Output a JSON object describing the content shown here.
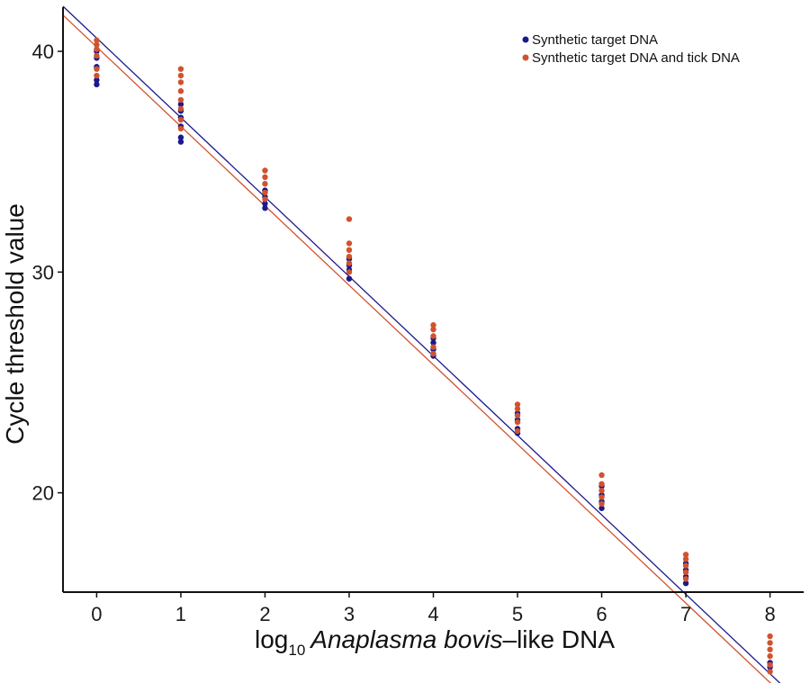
{
  "chart_data": {
    "type": "scatter",
    "xlabel_prefix": "log",
    "xlabel_subscript": "10",
    "xlabel_italic": "Anaplasma bovis",
    "xlabel_suffix": "–like DNA",
    "ylabel": "Cycle threshold value",
    "xlim": [
      -0.4,
      8.4
    ],
    "ylim": [
      15.5,
      42
    ],
    "x_ticks": [
      "0",
      "1",
      "2",
      "3",
      "4",
      "5",
      "6",
      "7",
      "8"
    ],
    "y_ticks": [
      "20",
      "30",
      "40"
    ],
    "legend_position": "top-right",
    "grid": false,
    "series": [
      {
        "name": "Synthetic target DNA",
        "color": "#1a1a8c",
        "regression": {
          "slope": -3.6,
          "intercept": 40.6
        },
        "points": [
          {
            "x": 0,
            "y": 38.5
          },
          {
            "x": 0,
            "y": 38.7
          },
          {
            "x": 0,
            "y": 39.3
          },
          {
            "x": 0,
            "y": 39.7
          },
          {
            "x": 0,
            "y": 40.0
          },
          {
            "x": 1,
            "y": 35.9
          },
          {
            "x": 1,
            "y": 36.1
          },
          {
            "x": 1,
            "y": 36.6
          },
          {
            "x": 1,
            "y": 37.0
          },
          {
            "x": 1,
            "y": 37.3
          },
          {
            "x": 1,
            "y": 37.6
          },
          {
            "x": 2,
            "y": 32.9
          },
          {
            "x": 2,
            "y": 33.1
          },
          {
            "x": 2,
            "y": 33.4
          },
          {
            "x": 2,
            "y": 33.7
          },
          {
            "x": 3,
            "y": 29.7
          },
          {
            "x": 3,
            "y": 30.1
          },
          {
            "x": 3,
            "y": 30.3
          },
          {
            "x": 3,
            "y": 30.6
          },
          {
            "x": 4,
            "y": 26.2
          },
          {
            "x": 4,
            "y": 26.5
          },
          {
            "x": 4,
            "y": 26.8
          },
          {
            "x": 4,
            "y": 27.0
          },
          {
            "x": 5,
            "y": 22.7
          },
          {
            "x": 5,
            "y": 22.9
          },
          {
            "x": 5,
            "y": 23.3
          },
          {
            "x": 5,
            "y": 23.6
          },
          {
            "x": 6,
            "y": 19.3
          },
          {
            "x": 6,
            "y": 19.6
          },
          {
            "x": 6,
            "y": 19.9
          },
          {
            "x": 6,
            "y": 20.3
          },
          {
            "x": 7,
            "y": 15.9
          },
          {
            "x": 7,
            "y": 16.2
          },
          {
            "x": 7,
            "y": 16.5
          },
          {
            "x": 7,
            "y": 16.8
          },
          {
            "x": 8,
            "y": 12.1
          },
          {
            "x": 8,
            "y": 12.3
          }
        ]
      },
      {
        "name": "Synthetic target DNA and tick DNA",
        "color": "#d0532f",
        "regression": {
          "slope": -3.6,
          "intercept": 40.2
        },
        "points": [
          {
            "x": 0,
            "y": 38.9
          },
          {
            "x": 0,
            "y": 39.2
          },
          {
            "x": 0,
            "y": 39.8
          },
          {
            "x": 0,
            "y": 40.1
          },
          {
            "x": 0,
            "y": 40.3
          },
          {
            "x": 0,
            "y": 40.5
          },
          {
            "x": 1,
            "y": 36.5
          },
          {
            "x": 1,
            "y": 36.9
          },
          {
            "x": 1,
            "y": 37.4
          },
          {
            "x": 1,
            "y": 37.8
          },
          {
            "x": 1,
            "y": 38.2
          },
          {
            "x": 1,
            "y": 38.6
          },
          {
            "x": 1,
            "y": 38.9
          },
          {
            "x": 1,
            "y": 39.2
          },
          {
            "x": 2,
            "y": 33.3
          },
          {
            "x": 2,
            "y": 33.6
          },
          {
            "x": 2,
            "y": 34.0
          },
          {
            "x": 2,
            "y": 34.3
          },
          {
            "x": 2,
            "y": 34.6
          },
          {
            "x": 3,
            "y": 30.0
          },
          {
            "x": 3,
            "y": 30.4
          },
          {
            "x": 3,
            "y": 30.7
          },
          {
            "x": 3,
            "y": 31.0
          },
          {
            "x": 3,
            "y": 31.3
          },
          {
            "x": 3,
            "y": 32.4
          },
          {
            "x": 4,
            "y": 26.3
          },
          {
            "x": 4,
            "y": 26.6
          },
          {
            "x": 4,
            "y": 27.1
          },
          {
            "x": 4,
            "y": 27.4
          },
          {
            "x": 4,
            "y": 27.6
          },
          {
            "x": 5,
            "y": 22.8
          },
          {
            "x": 5,
            "y": 23.2
          },
          {
            "x": 5,
            "y": 23.5
          },
          {
            "x": 5,
            "y": 23.8
          },
          {
            "x": 5,
            "y": 24.0
          },
          {
            "x": 6,
            "y": 19.5
          },
          {
            "x": 6,
            "y": 19.8
          },
          {
            "x": 6,
            "y": 20.1
          },
          {
            "x": 6,
            "y": 20.4
          },
          {
            "x": 6,
            "y": 20.8
          },
          {
            "x": 7,
            "y": 16.1
          },
          {
            "x": 7,
            "y": 16.4
          },
          {
            "x": 7,
            "y": 16.7
          },
          {
            "x": 7,
            "y": 17.0
          },
          {
            "x": 7,
            "y": 17.2
          },
          {
            "x": 8,
            "y": 11.9
          },
          {
            "x": 8,
            "y": 12.2
          },
          {
            "x": 8,
            "y": 12.6
          },
          {
            "x": 8,
            "y": 12.9
          },
          {
            "x": 8,
            "y": 13.2
          },
          {
            "x": 8,
            "y": 13.5
          }
        ]
      }
    ]
  }
}
